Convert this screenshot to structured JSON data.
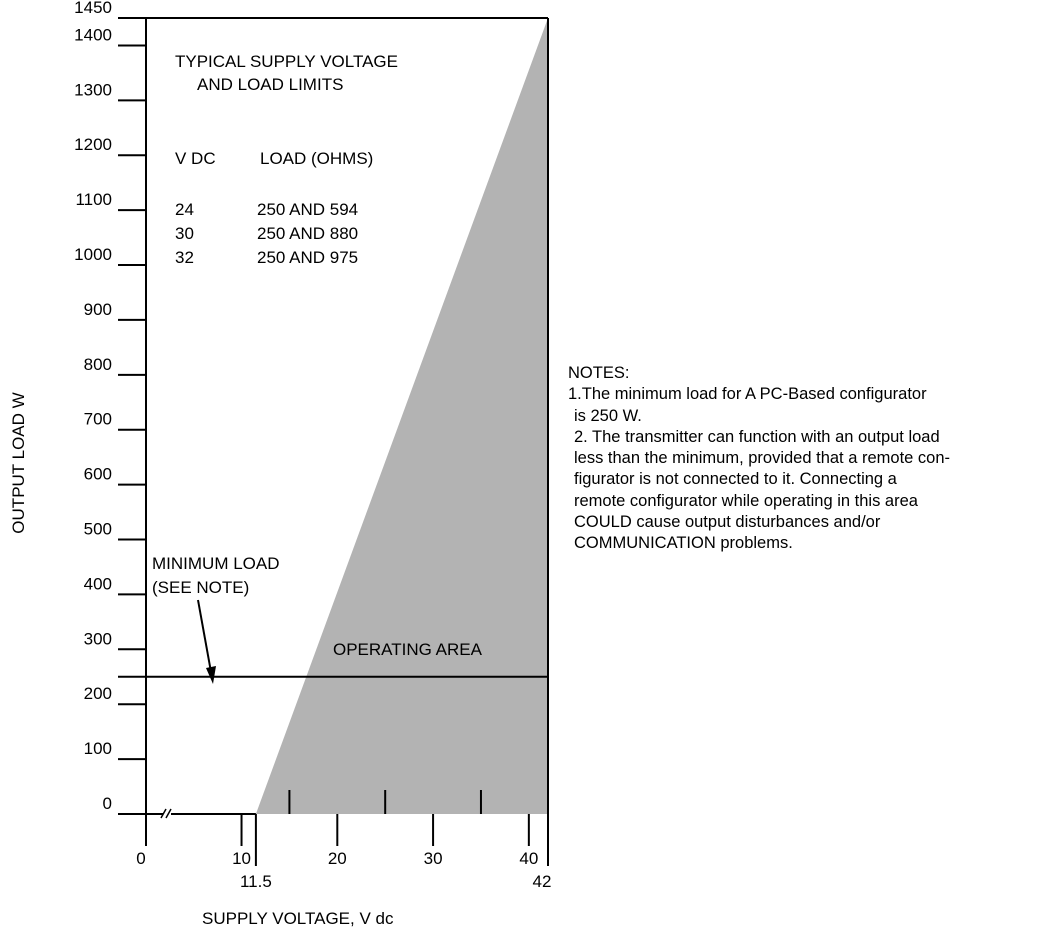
{
  "chart_data": {
    "type": "area",
    "title": "TYPICAL SUPPLY VOLTAGE AND LOAD LIMITS",
    "title_lines": [
      "TYPICAL SUPPLY VOLTAGE",
      "AND LOAD LIMITS"
    ],
    "xlabel": "SUPPLY VOLTAGE, V dc",
    "ylabel": "OUTPUT LOAD W",
    "xlim": [
      0,
      42
    ],
    "ylim": [
      0,
      1450
    ],
    "x_axis_break": true,
    "x_ticks": [
      0,
      10,
      11.5,
      20,
      30,
      40,
      42
    ],
    "x_minor_ticks": [
      15,
      25,
      35
    ],
    "y_ticks": [
      0,
      100,
      200,
      300,
      400,
      500,
      600,
      700,
      800,
      900,
      1000,
      1100,
      1200,
      1300,
      1400,
      1450
    ],
    "series": [
      {
        "name": "OPERATING AREA",
        "points": [
          [
            11.5,
            0
          ],
          [
            42,
            1450
          ],
          [
            42,
            0
          ]
        ]
      }
    ],
    "reference_lines": [
      {
        "axis": "y",
        "value": 250,
        "label_lines": [
          "MINIMUM LOAD",
          "(SEE NOTE)"
        ]
      }
    ],
    "region_label": "OPERATING AREA",
    "table": {
      "headers": [
        "V DC",
        "LOAD (OHMS)"
      ],
      "rows": [
        [
          "24",
          "250 AND 594"
        ],
        [
          "30",
          "250 AND 880"
        ],
        [
          "32",
          "250 AND 975"
        ]
      ]
    },
    "fill_color": "#b3b3b3",
    "grid": false
  },
  "notes": {
    "heading": "NOTES:",
    "lines": [
      "1.The minimum load for A PC-Based configurator",
      " is 250 W.",
      " 2. The transmitter can function with an output load",
      " less than the minimum, provided that a remote con-",
      " figurator is not connected to it. Connecting a",
      " remote configurator while operating in this area",
      " COULD cause output disturbances and/or",
      " COMMUNICATION problems."
    ]
  }
}
